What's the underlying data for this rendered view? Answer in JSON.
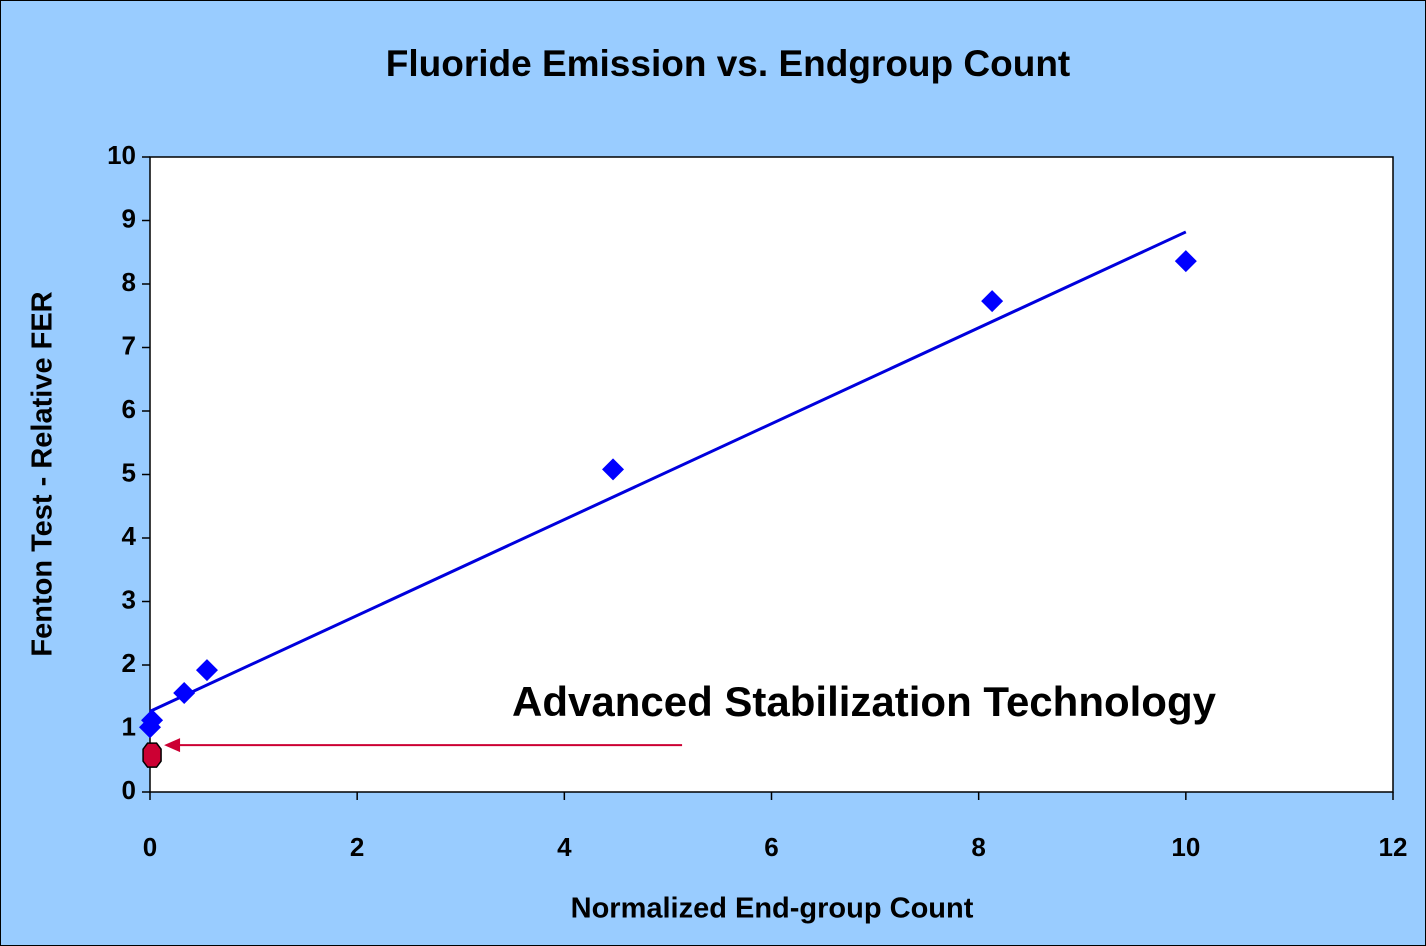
{
  "chart_data": {
    "type": "scatter",
    "title": "Fluoride Emission vs. Endgroup Count",
    "x_label": "Normalized End-group Count",
    "y_label": "Fenton Test - Relative FER",
    "xlim": [
      0,
      12
    ],
    "xticks": [
      0,
      2,
      4,
      6,
      8,
      10,
      12
    ],
    "ylim": [
      0,
      10
    ],
    "yticks": [
      0,
      1,
      2,
      3,
      4,
      5,
      6,
      7,
      8,
      9,
      10
    ],
    "series": [
      {
        "color": "#0000ff",
        "x": [
          0,
          0.02,
          0.33,
          0.55,
          4.47,
          8.13,
          10
        ],
        "values": [
          1.02,
          1.13,
          1.56,
          1.92,
          5.08,
          7.73,
          8.36
        ]
      }
    ],
    "trendline": {
      "color": "#0000dd",
      "x": [
        0,
        10
      ],
      "values": [
        1.27,
        8.82
      ]
    },
    "highlight": {
      "color": "#cc0033",
      "x": [
        0.02
      ],
      "values": [
        0.58
      ],
      "label": "Advanced Stabilization Technology",
      "label_color": "#3a3a78"
    }
  }
}
